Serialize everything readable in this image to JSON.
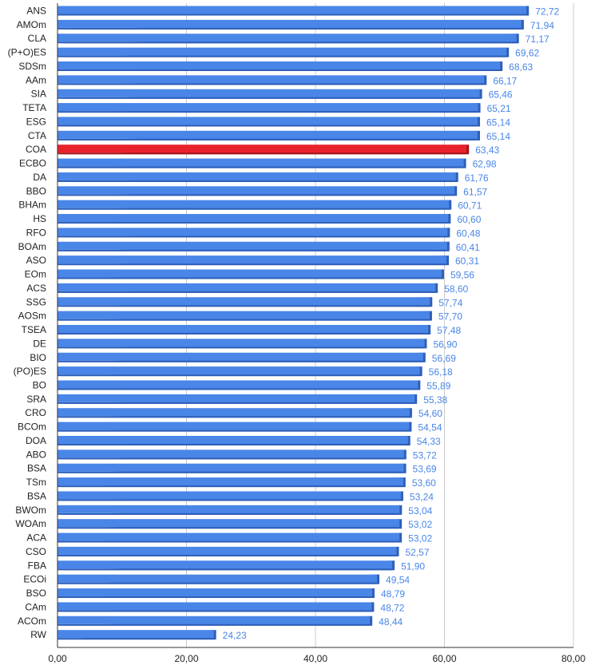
{
  "chart_data": {
    "type": "bar",
    "orientation": "horizontal",
    "categories": [
      "ANS",
      "AMOm",
      "CLA",
      "(P+O)ES",
      "SDSm",
      "AAm",
      "SIA",
      "TETA",
      "ESG",
      "CTA",
      "COA",
      "ECBO",
      "DA",
      "BBO",
      "BHAm",
      "HS",
      "RFO",
      "BOAm",
      "ASO",
      "EOm",
      "ACS",
      "SSG",
      "AOSm",
      "TSEA",
      "DE",
      "BIO",
      "(PO)ES",
      "BO",
      "SRA",
      "CRO",
      "BCOm",
      "DOA",
      "ABO",
      "BSA",
      "TSm",
      "BSA",
      "BWOm",
      "WOAm",
      "ACA",
      "CSO",
      "FBA",
      "ECOi",
      "BSO",
      "CAm",
      "ACOm",
      "RW"
    ],
    "values": [
      72.72,
      71.94,
      71.17,
      69.62,
      68.63,
      66.17,
      65.46,
      65.21,
      65.14,
      65.14,
      63.43,
      62.98,
      61.76,
      61.57,
      60.71,
      60.6,
      60.48,
      60.41,
      60.31,
      59.56,
      58.6,
      57.74,
      57.7,
      57.48,
      56.9,
      56.69,
      56.18,
      55.89,
      55.38,
      54.6,
      54.54,
      54.33,
      53.72,
      53.69,
      53.6,
      53.24,
      53.04,
      53.02,
      53.02,
      52.57,
      51.9,
      49.54,
      48.79,
      48.72,
      48.44,
      24.23
    ],
    "value_labels": [
      "72,72",
      "71,94",
      "71,17",
      "69,62",
      "68,63",
      "66,17",
      "65,46",
      "65,21",
      "65,14",
      "65,14",
      "63,43",
      "62,98",
      "61,76",
      "61,57",
      "60,71",
      "60,60",
      "60,48",
      "60,41",
      "60,31",
      "59,56",
      "58,60",
      "57,74",
      "57,70",
      "57,48",
      "56,90",
      "56,69",
      "56,18",
      "55,89",
      "55,38",
      "54,60",
      "54,54",
      "54,33",
      "53,72",
      "53,69",
      "53,60",
      "53,24",
      "53,04",
      "53,02",
      "53,02",
      "52,57",
      "51,90",
      "49,54",
      "48,79",
      "48,72",
      "48,44",
      "24,23"
    ],
    "highlight_category": "COA",
    "xlim": [
      0,
      80
    ],
    "xticks": [
      0,
      20,
      40,
      60,
      80
    ],
    "xtick_labels": [
      "0,00",
      "20,00",
      "40,00",
      "60,00",
      "80,00"
    ],
    "grid": true,
    "colors": {
      "bar": "#4a86e8",
      "bar_dark": "#2f5fb8",
      "highlight": "#e8222c",
      "highlight_dark": "#a5141b",
      "value_label": "#4a86e8"
    }
  }
}
